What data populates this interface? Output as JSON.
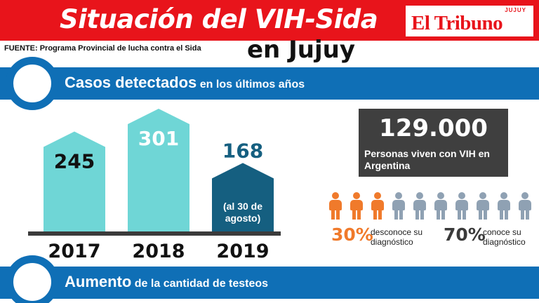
{
  "header": {
    "title": "Situación del VIH-Sida",
    "subtitle": "en Jujuy",
    "source": "FUENTE: Programa Provincial de lucha contra el Sida"
  },
  "logo": {
    "name": "El Tribuno",
    "region": "JUJUY"
  },
  "section_cases": {
    "strong": "Casos detectados",
    "light": "en los últimos años"
  },
  "section_tests": {
    "strong": "Aumento",
    "light": "de la cantidad de testeos"
  },
  "chart_data": {
    "type": "bar",
    "categories": [
      "2017",
      "2018",
      "2019"
    ],
    "values": [
      245,
      301,
      168
    ],
    "value_labels": [
      "245",
      "301",
      "168"
    ],
    "notes": [
      "",
      "",
      "(al 30 de agosto)"
    ],
    "colors": [
      "#6fd6d6",
      "#6fd6d6",
      "#155f80"
    ],
    "label_colors": [
      "#111111",
      "#ffffff",
      "#155f80"
    ],
    "ylim": [
      0,
      301
    ]
  },
  "stat": {
    "number": "129.000",
    "caption": "Personas viven con VIH en Argentina"
  },
  "people": {
    "icon": "person-icon",
    "total": 10,
    "highlighted": 3,
    "highlight_color": "#f07a2b",
    "base_color": "#8fa1b3"
  },
  "unaware": {
    "percent": "30%",
    "text": "desconoce su diagnóstico",
    "color": "#f07a2b"
  },
  "aware": {
    "percent": "70%",
    "text": "conoce su diagnóstico",
    "color": "#3a3a3a"
  }
}
